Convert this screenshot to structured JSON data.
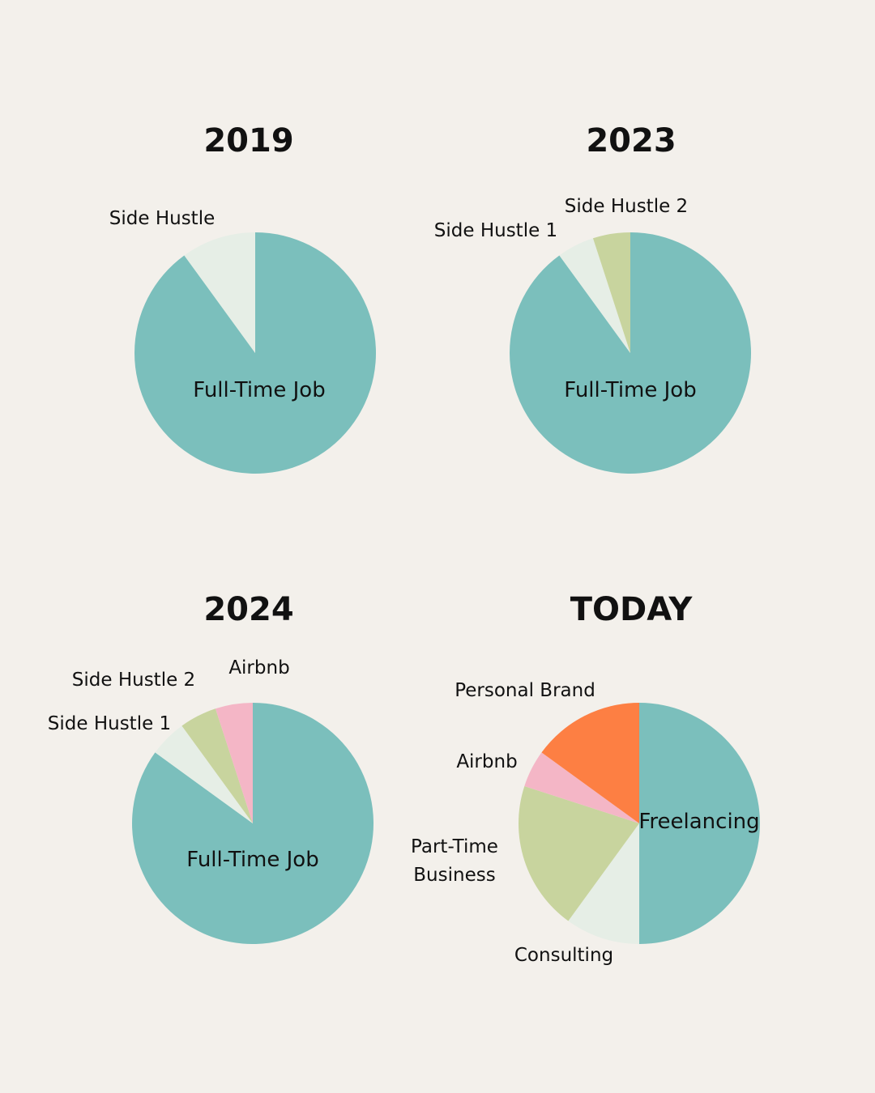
{
  "chart_data": [
    {
      "type": "pie",
      "title": "2019",
      "slices": [
        {
          "label": "Full-Time Job",
          "value": 90,
          "color": "#7bbfbc"
        },
        {
          "label": "Side Hustle",
          "value": 10,
          "color": "#e6eee6"
        }
      ]
    },
    {
      "type": "pie",
      "title": "2023",
      "slices": [
        {
          "label": "Full-Time Job",
          "value": 90,
          "color": "#7bbfbc"
        },
        {
          "label": "Side Hustle 1",
          "value": 5,
          "color": "#e6eee6"
        },
        {
          "label": "Side Hustle 2",
          "value": 5,
          "color": "#c8d49e"
        }
      ]
    },
    {
      "type": "pie",
      "title": "2024",
      "slices": [
        {
          "label": "Full-Time Job",
          "value": 85,
          "color": "#7bbfbc"
        },
        {
          "label": "Side Hustle 1",
          "value": 5,
          "color": "#e6eee6"
        },
        {
          "label": "Side Hustle 2",
          "value": 5,
          "color": "#c8d49e"
        },
        {
          "label": "Airbnb",
          "value": 5,
          "color": "#f4b6c6"
        }
      ]
    },
    {
      "type": "pie",
      "title": "TODAY",
      "slices": [
        {
          "label": "Freelancing",
          "value": 50,
          "color": "#7bbfbc"
        },
        {
          "label": "Consulting",
          "value": 10,
          "color": "#e6eee6"
        },
        {
          "label": "Part-Time Business",
          "value": 20,
          "color": "#c8d49e"
        },
        {
          "label": "Airbnb",
          "value": 5,
          "color": "#f4b6c6"
        },
        {
          "label": "Personal Brand",
          "value": 15,
          "color": "#fd7f43"
        }
      ]
    }
  ]
}
